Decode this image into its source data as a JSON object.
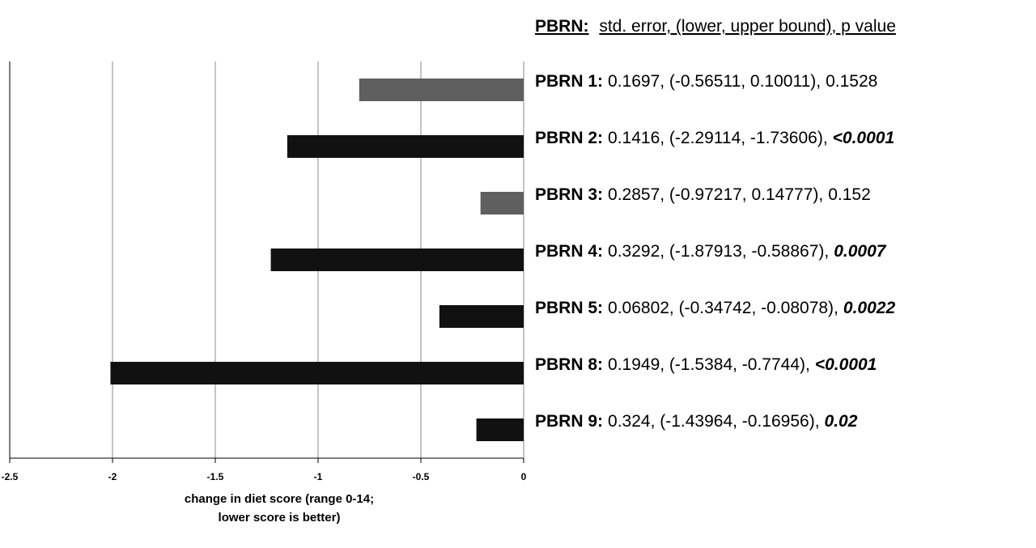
{
  "chart_data": {
    "type": "barh",
    "header": {
      "label": "PBRN:",
      "text": "std. error, (lower, upper bound), p value"
    },
    "categories": [
      "PBRN 1:",
      "PBRN 2:",
      "PBRN 3:",
      "PBRN 4:",
      "PBRN 5:",
      "PBRN 8:",
      "PBRN 9:"
    ],
    "values": [
      -0.8,
      -1.15,
      -0.21,
      -1.23,
      -0.41,
      -2.01,
      -0.23
    ],
    "colors": [
      "#5f5f5f",
      "#111111",
      "#5f5f5f",
      "#111111",
      "#111111",
      "#111111",
      "#111111"
    ],
    "details": [
      "0.1697, (-0.56511, 0.10011),",
      "0.1416, (-2.29114, -1.73606),",
      "0.2857, (-0.97217, 0.14777),",
      "0.3292, (-1.87913, -0.58867),",
      "0.06802, (-0.34742, -0.08078),",
      "0.1949, (-1.5384, -0.7744),",
      "0.324, (-1.43964, -0.16956),"
    ],
    "p_values": [
      "0.1528",
      "<0.0001",
      "0.152",
      "0.0007",
      "0.0022",
      "<0.0001",
      "0.02"
    ],
    "p_emphasis": [
      false,
      true,
      false,
      true,
      true,
      true,
      true
    ],
    "xlabel": [
      "change in diet score (range 0-14;",
      "lower score is better)"
    ],
    "xlim": [
      -2.5,
      0
    ],
    "xticks": [
      -2.5,
      -2,
      -1.5,
      -1,
      -0.5,
      0
    ],
    "grid": true
  }
}
